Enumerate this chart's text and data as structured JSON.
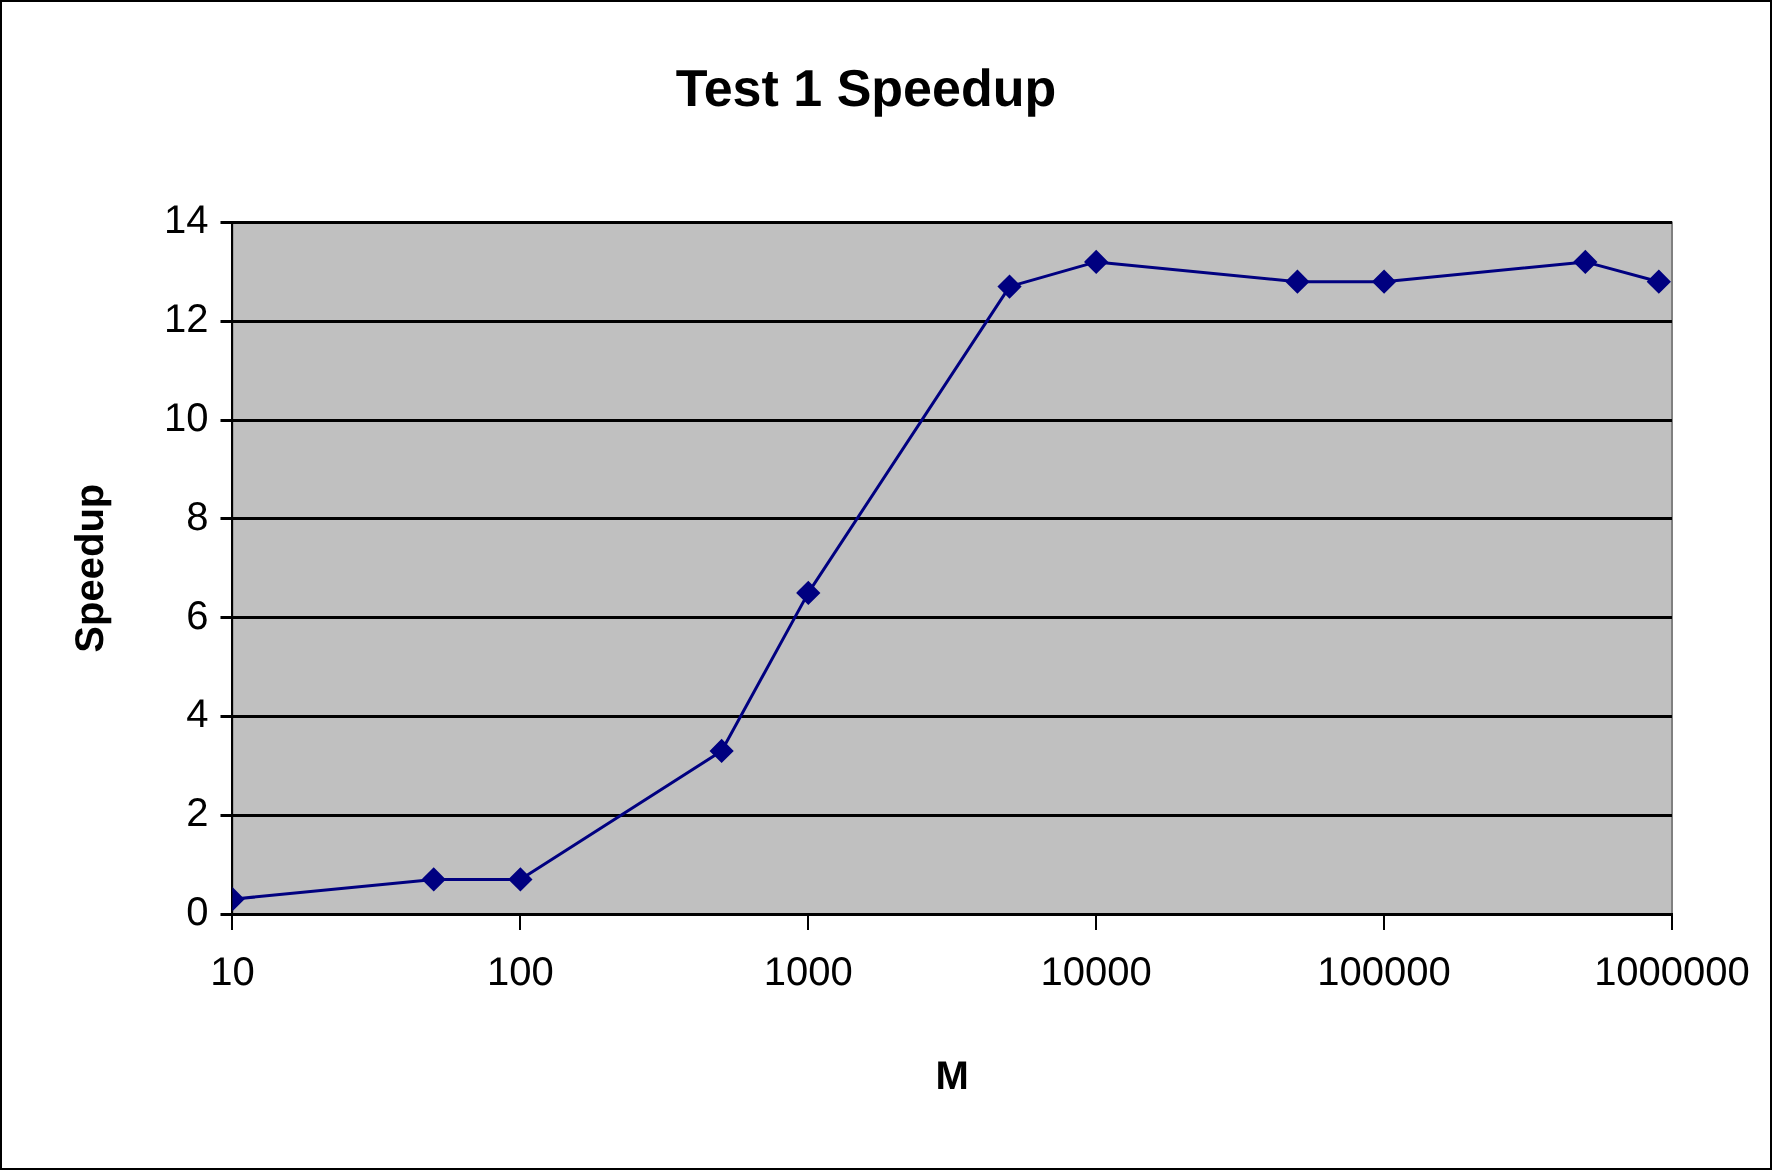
{
  "chart_data": {
    "type": "line",
    "title": "Test 1 Speedup",
    "xlabel": "M",
    "ylabel": "Speedup",
    "x": [
      10,
      50,
      100,
      500,
      1000,
      5000,
      10000,
      50000,
      100000,
      500000,
      900000
    ],
    "series": [
      {
        "color": "#000080",
        "values": [
          0.3,
          0.7,
          0.7,
          3.3,
          6.5,
          12.7,
          13.2,
          12.8,
          12.8,
          13.2,
          12.8
        ]
      }
    ],
    "log": "x",
    "xlim": [
      10,
      1000000
    ],
    "xticks": [
      10,
      100,
      1000,
      10000,
      100000,
      1000000
    ],
    "ylim": [
      0,
      14
    ],
    "yticks": [
      0,
      2,
      4,
      6,
      8,
      10,
      12,
      14
    ],
    "grid": "y",
    "legend": false,
    "marker": "diamond",
    "line_style": "solid"
  }
}
